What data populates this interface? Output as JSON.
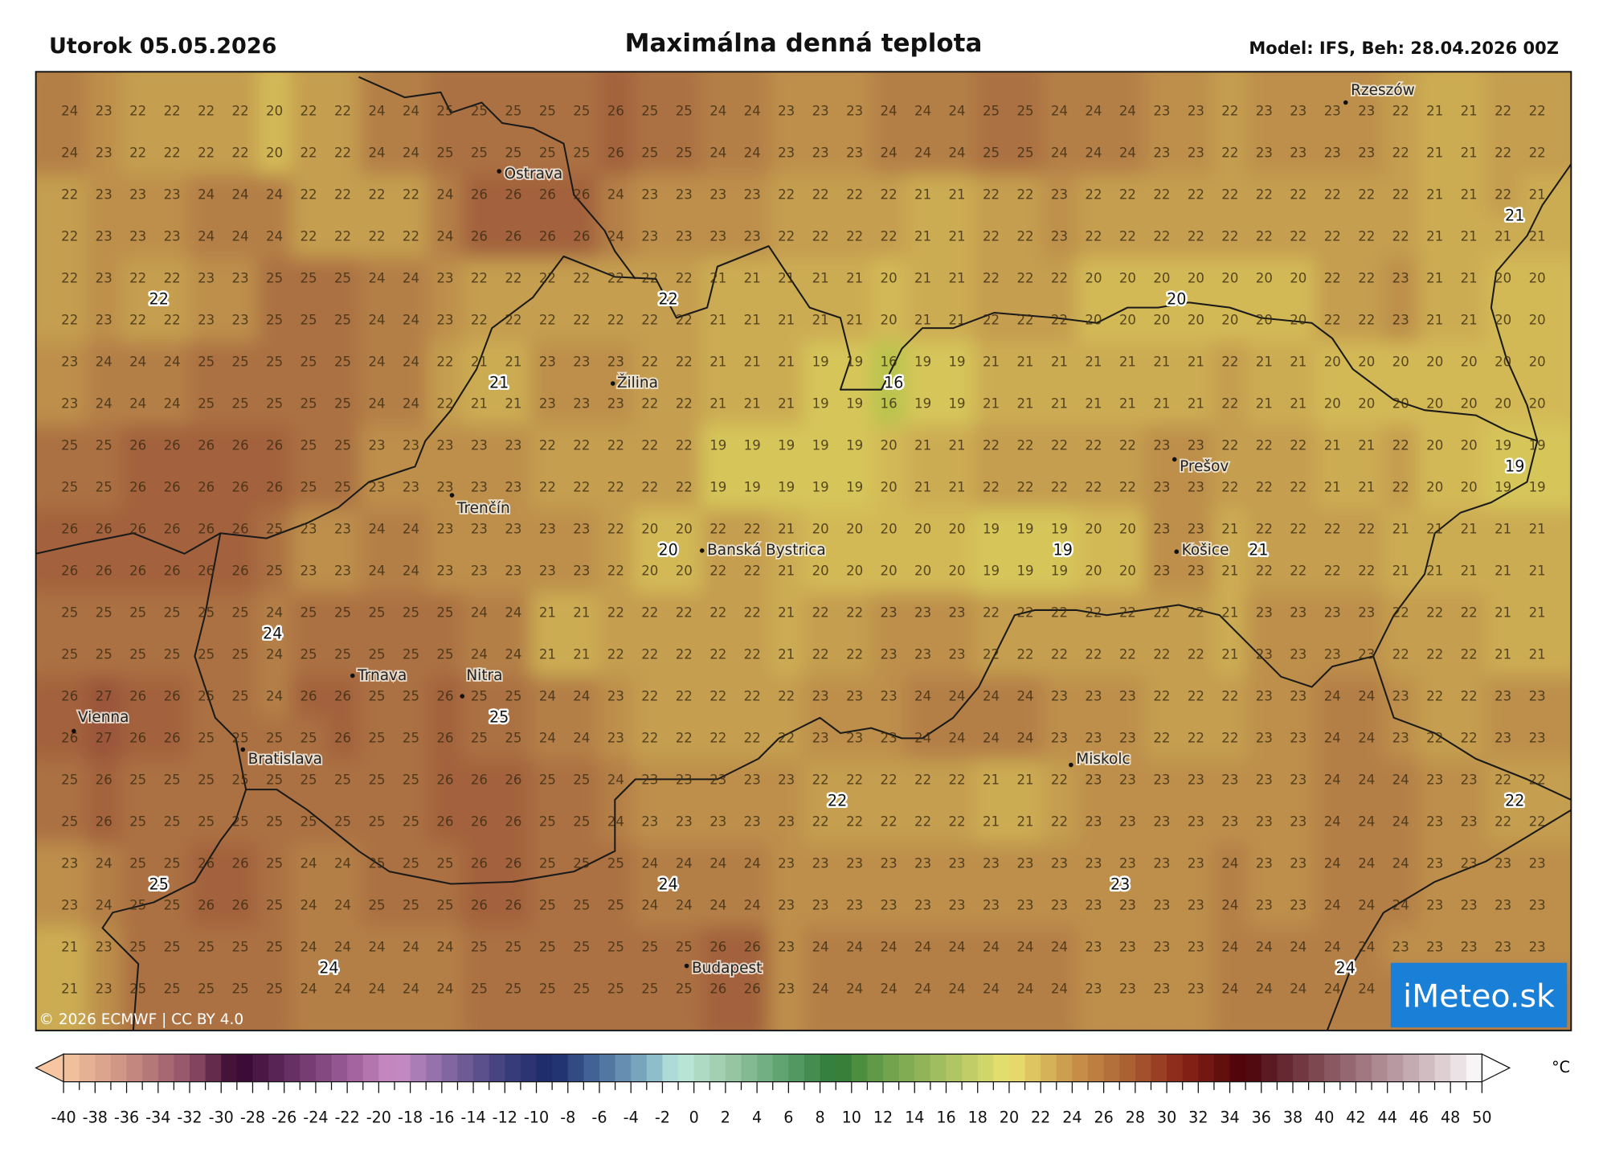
{
  "header": {
    "date": "Utorok 05.05.2026",
    "title": "Maximálna denná teplota",
    "model": "Model: IFS, Beh: 28.04.2026 00Z"
  },
  "map": {
    "copyright": "© 2026 ECMWF | CC BY 4.0",
    "logo": "iMeteo.sk",
    "logo_color": "#1a7fd6",
    "border_color": "#1a1a1a",
    "cities": [
      "Rzeszów",
      "Ostrava",
      "Žilina",
      "Prešov",
      "Trenčín",
      "Banská Bystrica",
      "Košice",
      "Trnava",
      "Nitra",
      "Vienna",
      "Bratislava",
      "Miskolc",
      "Budapest"
    ],
    "extreme_labels": [
      "22",
      "22",
      "21",
      "16",
      "20",
      "21",
      "19",
      "20",
      "19",
      "21",
      "24",
      "25",
      "22",
      "22",
      "25",
      "24",
      "23",
      "24",
      "24"
    ],
    "field_colors": [
      [
        16,
        "#b9c44e"
      ],
      [
        19,
        "#d6c65a"
      ],
      [
        20,
        "#d3b957"
      ],
      [
        22,
        "#c59e4f"
      ],
      [
        24,
        "#b47f46"
      ],
      [
        26,
        "#a3623e"
      ],
      [
        27,
        "#9a553a"
      ]
    ],
    "grid": [
      [
        24,
        23,
        22,
        22,
        22,
        22,
        20,
        22,
        22,
        24,
        24,
        25,
        25,
        25,
        25,
        25,
        26,
        25,
        25,
        24,
        24,
        23,
        23,
        23,
        24,
        24,
        24,
        25,
        25,
        24,
        24,
        24,
        23,
        23,
        22,
        23,
        23,
        23,
        23,
        22,
        21,
        21,
        22,
        22
      ],
      [
        24,
        23,
        22,
        22,
        22,
        22,
        20,
        22,
        22,
        24,
        24,
        25,
        25,
        25,
        25,
        25,
        26,
        25,
        25,
        24,
        24,
        23,
        23,
        23,
        24,
        24,
        24,
        25,
        25,
        24,
        24,
        24,
        23,
        23,
        22,
        23,
        23,
        23,
        23,
        22,
        21,
        21,
        22,
        22
      ],
      [
        22,
        23,
        23,
        23,
        24,
        24,
        24,
        22,
        22,
        22,
        22,
        24,
        26,
        26,
        26,
        26,
        24,
        23,
        23,
        23,
        23,
        22,
        22,
        22,
        22,
        21,
        21,
        22,
        22,
        23,
        22,
        22,
        22,
        22,
        22,
        22,
        22,
        22,
        22,
        22,
        21,
        21,
        22,
        21
      ],
      [
        22,
        23,
        23,
        23,
        24,
        24,
        24,
        22,
        22,
        22,
        22,
        24,
        26,
        26,
        26,
        26,
        24,
        23,
        23,
        23,
        23,
        22,
        22,
        22,
        22,
        21,
        21,
        22,
        22,
        23,
        22,
        22,
        22,
        22,
        22,
        22,
        22,
        22,
        22,
        22,
        21,
        21,
        21,
        21
      ],
      [
        22,
        23,
        22,
        22,
        23,
        23,
        25,
        25,
        25,
        24,
        24,
        23,
        22,
        22,
        22,
        22,
        22,
        22,
        22,
        21,
        21,
        21,
        21,
        21,
        20,
        21,
        21,
        22,
        22,
        22,
        20,
        20,
        20,
        20,
        20,
        20,
        20,
        22,
        22,
        23,
        21,
        21,
        20,
        20
      ],
      [
        22,
        23,
        22,
        22,
        23,
        23,
        25,
        25,
        25,
        24,
        24,
        23,
        22,
        22,
        22,
        22,
        22,
        22,
        22,
        21,
        21,
        21,
        21,
        21,
        20,
        21,
        21,
        22,
        22,
        22,
        20,
        20,
        20,
        20,
        20,
        20,
        20,
        22,
        22,
        23,
        21,
        21,
        20,
        20
      ],
      [
        23,
        24,
        24,
        24,
        25,
        25,
        25,
        25,
        25,
        24,
        24,
        22,
        21,
        21,
        23,
        23,
        23,
        22,
        22,
        21,
        21,
        21,
        19,
        19,
        16,
        19,
        19,
        21,
        21,
        21,
        21,
        21,
        21,
        21,
        22,
        21,
        21,
        20,
        20,
        20,
        20,
        20,
        20,
        20
      ],
      [
        23,
        24,
        24,
        24,
        25,
        25,
        25,
        25,
        25,
        24,
        24,
        22,
        21,
        21,
        23,
        23,
        23,
        22,
        22,
        21,
        21,
        21,
        19,
        19,
        16,
        19,
        19,
        21,
        21,
        21,
        21,
        21,
        21,
        21,
        22,
        21,
        21,
        20,
        20,
        20,
        20,
        20,
        20,
        20
      ],
      [
        25,
        25,
        26,
        26,
        26,
        26,
        26,
        25,
        25,
        23,
        23,
        23,
        23,
        23,
        22,
        22,
        22,
        22,
        22,
        19,
        19,
        19,
        19,
        19,
        20,
        21,
        21,
        22,
        22,
        22,
        22,
        22,
        23,
        23,
        22,
        22,
        22,
        21,
        21,
        22,
        20,
        20,
        19,
        19
      ],
      [
        25,
        25,
        26,
        26,
        26,
        26,
        26,
        25,
        25,
        23,
        23,
        23,
        23,
        23,
        22,
        22,
        22,
        22,
        22,
        19,
        19,
        19,
        19,
        19,
        20,
        21,
        21,
        22,
        22,
        22,
        22,
        22,
        23,
        23,
        22,
        22,
        22,
        21,
        21,
        22,
        20,
        20,
        19,
        19
      ],
      [
        26,
        26,
        26,
        26,
        26,
        26,
        25,
        23,
        23,
        24,
        24,
        23,
        23,
        23,
        23,
        23,
        22,
        20,
        20,
        22,
        22,
        21,
        20,
        20,
        20,
        20,
        20,
        19,
        19,
        19,
        20,
        20,
        23,
        23,
        21,
        22,
        22,
        22,
        22,
        21,
        21,
        21,
        21,
        21
      ],
      [
        26,
        26,
        26,
        26,
        26,
        26,
        25,
        23,
        23,
        24,
        24,
        23,
        23,
        23,
        23,
        23,
        22,
        20,
        20,
        22,
        22,
        21,
        20,
        20,
        20,
        20,
        20,
        19,
        19,
        19,
        20,
        20,
        23,
        23,
        21,
        22,
        22,
        22,
        22,
        21,
        21,
        21,
        21,
        21
      ],
      [
        25,
        25,
        25,
        25,
        25,
        25,
        24,
        25,
        25,
        25,
        25,
        25,
        24,
        24,
        21,
        21,
        22,
        22,
        22,
        22,
        22,
        21,
        22,
        22,
        23,
        23,
        23,
        22,
        22,
        22,
        22,
        22,
        22,
        22,
        21,
        23,
        23,
        23,
        23,
        22,
        22,
        22,
        21,
        21
      ],
      [
        25,
        25,
        25,
        25,
        25,
        25,
        24,
        25,
        25,
        25,
        25,
        25,
        24,
        24,
        21,
        21,
        22,
        22,
        22,
        22,
        22,
        21,
        22,
        22,
        23,
        23,
        23,
        22,
        22,
        22,
        22,
        22,
        22,
        22,
        21,
        23,
        23,
        23,
        23,
        22,
        22,
        22,
        21,
        21
      ],
      [
        26,
        27,
        26,
        26,
        25,
        25,
        24,
        26,
        26,
        25,
        25,
        26,
        25,
        25,
        24,
        24,
        23,
        22,
        22,
        22,
        22,
        22,
        23,
        23,
        23,
        24,
        24,
        24,
        24,
        23,
        23,
        23,
        22,
        22,
        22,
        23,
        23,
        24,
        24,
        23,
        22,
        22,
        23,
        23
      ],
      [
        26,
        27,
        26,
        26,
        25,
        25,
        25,
        25,
        26,
        25,
        25,
        26,
        25,
        25,
        24,
        24,
        23,
        22,
        22,
        22,
        22,
        22,
        23,
        23,
        23,
        24,
        24,
        24,
        24,
        23,
        23,
        23,
        22,
        22,
        22,
        23,
        23,
        24,
        24,
        23,
        22,
        22,
        23,
        23
      ],
      [
        25,
        26,
        25,
        25,
        25,
        25,
        25,
        25,
        25,
        25,
        25,
        26,
        26,
        26,
        25,
        25,
        24,
        23,
        23,
        23,
        23,
        23,
        22,
        22,
        22,
        22,
        22,
        21,
        21,
        22,
        23,
        23,
        23,
        23,
        23,
        23,
        23,
        24,
        24,
        24,
        23,
        23,
        22,
        22
      ],
      [
        25,
        26,
        25,
        25,
        25,
        25,
        25,
        25,
        25,
        25,
        25,
        26,
        26,
        26,
        25,
        25,
        24,
        23,
        23,
        23,
        23,
        23,
        22,
        22,
        22,
        22,
        22,
        21,
        21,
        22,
        23,
        23,
        23,
        23,
        23,
        23,
        23,
        24,
        24,
        24,
        23,
        23,
        22,
        22
      ],
      [
        23,
        24,
        25,
        25,
        26,
        26,
        25,
        24,
        24,
        25,
        25,
        25,
        26,
        26,
        25,
        25,
        25,
        24,
        24,
        24,
        24,
        23,
        23,
        23,
        23,
        23,
        23,
        23,
        23,
        23,
        23,
        23,
        23,
        23,
        24,
        23,
        23,
        24,
        24,
        24,
        23,
        23,
        23,
        23
      ],
      [
        23,
        24,
        25,
        25,
        26,
        26,
        25,
        24,
        24,
        25,
        25,
        25,
        26,
        26,
        25,
        25,
        25,
        24,
        24,
        24,
        24,
        23,
        23,
        23,
        23,
        23,
        23,
        23,
        23,
        23,
        23,
        23,
        23,
        23,
        24,
        23,
        23,
        24,
        24,
        24,
        23,
        23,
        23,
        23
      ],
      [
        21,
        23,
        25,
        25,
        25,
        25,
        25,
        24,
        24,
        24,
        24,
        24,
        25,
        25,
        25,
        25,
        25,
        25,
        25,
        26,
        26,
        23,
        24,
        24,
        24,
        24,
        24,
        24,
        24,
        24,
        23,
        23,
        23,
        23,
        24,
        24,
        24,
        24,
        24,
        23,
        23,
        23,
        23,
        23
      ],
      [
        21,
        23,
        25,
        25,
        25,
        25,
        25,
        24,
        24,
        24,
        24,
        24,
        25,
        25,
        25,
        25,
        25,
        25,
        25,
        26,
        26,
        23,
        24,
        24,
        24,
        24,
        24,
        24,
        24,
        24,
        23,
        23,
        23,
        23,
        24,
        24,
        24,
        24,
        24,
        null,
        null,
        null,
        null,
        null
      ]
    ]
  },
  "legend": {
    "unit": "°C",
    "min": -40,
    "max": 50,
    "tick_labels": [
      "-40",
      "-38",
      "-36",
      "-34",
      "-32",
      "-30",
      "-28",
      "-26",
      "-24",
      "-22",
      "-20",
      "-18",
      "-16",
      "-14",
      "-12",
      "-10",
      "-8",
      "-6",
      "-4",
      "-2",
      "0",
      "2",
      "4",
      "6",
      "8",
      "10",
      "12",
      "14",
      "16",
      "18",
      "20",
      "22",
      "24",
      "26",
      "28",
      "30",
      "32",
      "34",
      "36",
      "38",
      "40",
      "42",
      "44",
      "46",
      "48",
      "50"
    ],
    "color_stops": [
      [
        -40,
        "#f5c6a0"
      ],
      [
        -36,
        "#cb8f82"
      ],
      [
        -32,
        "#915169"
      ],
      [
        -29,
        "#36052f"
      ],
      [
        -26,
        "#5f2a5d"
      ],
      [
        -22,
        "#9c5c98"
      ],
      [
        -19,
        "#cc8ec6"
      ],
      [
        -16,
        "#8a6ca6"
      ],
      [
        -12,
        "#3e3e7c"
      ],
      [
        -9,
        "#1a2a6a"
      ],
      [
        -6,
        "#4a6c9c"
      ],
      [
        -3,
        "#7fb0c4"
      ],
      [
        -1,
        "#bde9df"
      ],
      [
        2,
        "#9ecaa9"
      ],
      [
        5,
        "#69a97a"
      ],
      [
        9,
        "#2e7a36"
      ],
      [
        12,
        "#6a9f4a"
      ],
      [
        16,
        "#a8c162"
      ],
      [
        20,
        "#eae270"
      ],
      [
        24,
        "#c9944a"
      ],
      [
        28,
        "#a85a30"
      ],
      [
        31,
        "#8a2418"
      ],
      [
        35,
        "#4a0208"
      ],
      [
        38,
        "#6c3039"
      ],
      [
        42,
        "#9b7079"
      ],
      [
        46,
        "#cab2b9"
      ],
      [
        50,
        "#ffffff"
      ]
    ]
  }
}
